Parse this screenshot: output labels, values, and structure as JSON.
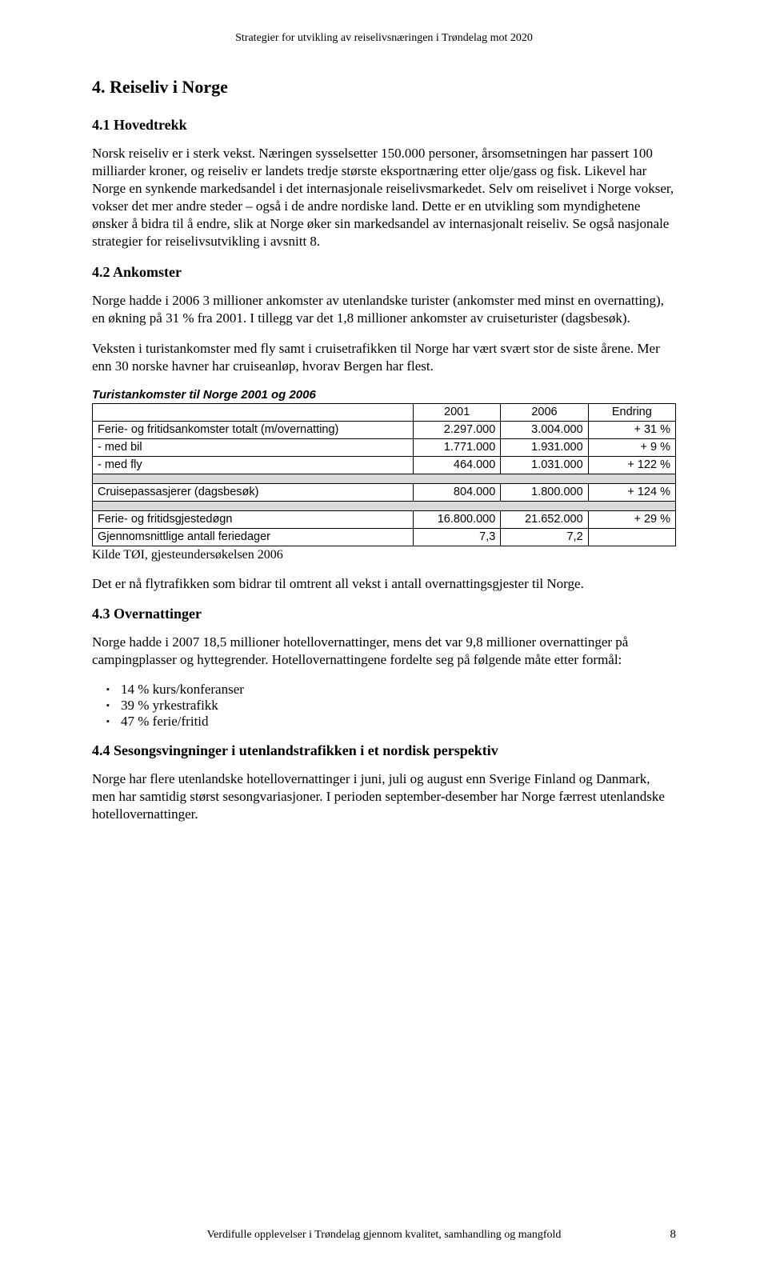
{
  "header": "Strategier for utvikling av reiselivsnæringen i Trøndelag mot 2020",
  "s4": {
    "title": "4. Reiseliv i Norge",
    "s41": {
      "title": "4.1 Hovedtrekk",
      "p1": "Norsk reiseliv er i sterk vekst. Næringen sysselsetter 150.000 personer, årsomsetningen har passert 100 milliarder kroner, og reiseliv er landets tredje største eksportnæring etter olje/gass og fisk. Likevel har Norge en synkende markedsandel i det internasjonale reiselivsmarkedet. Selv om reiselivet i Norge vokser, vokser det mer andre steder – også i de andre nordiske land. Dette er en utvikling som myndighetene ønsker å bidra til å endre, slik at Norge øker sin markedsandel av internasjonalt reiseliv. Se også nasjonale strategier for reiselivsutvikling i avsnitt 8."
    },
    "s42": {
      "title": "4.2 Ankomster",
      "p1": "Norge hadde i 2006 3 millioner ankomster av utenlandske turister (ankomster med minst en overnatting), en økning på 31 % fra 2001. I tillegg var det 1,8 millioner ankomster av cruiseturister (dagsbesøk).",
      "p2": "Veksten i turistankomster med fly samt i cruisetrafikken til Norge har vært svært stor de siste årene. Mer enn 30 norske havner har cruiseanløp, hvorav Bergen har flest.",
      "tableTitle": "Turistankomster til Norge 2001 og 2006",
      "th1": "2001",
      "th2": "2006",
      "th3": "Endring",
      "r1": {
        "label": "Ferie- og fritidsankomster totalt (m/overnatting)",
        "c1": "2.297.000",
        "c2": "3.004.000",
        "c3": "+  31 %"
      },
      "r2": {
        "label": "- med bil",
        "c1": "1.771.000",
        "c2": "1.931.000",
        "c3": "+    9 %"
      },
      "r3": {
        "label": "- med fly",
        "c1": "464.000",
        "c2": "1.031.000",
        "c3": "+ 122 %"
      },
      "r4": {
        "label": "Cruisepassasjerer (dagsbesøk)",
        "c1": "804.000",
        "c2": "1.800.000",
        "c3": "+ 124 %"
      },
      "r5": {
        "label": "Ferie- og fritidsgjestedøgn",
        "c1": "16.800.000",
        "c2": "21.652.000",
        "c3": "+  29 %"
      },
      "r6": {
        "label": "Gjennomsnittlige antall feriedager",
        "c1": "7,3",
        "c2": "7,2",
        "c3": ""
      },
      "source": "Kilde TØI, gjesteundersøkelsen 2006",
      "p3": "Det er nå flytrafikken som bidrar til omtrent all vekst i antall overnattingsgjester til Norge."
    },
    "s43": {
      "title": "4.3 Overnattinger",
      "p1": "Norge hadde i 2007 18,5 millioner hotellovernattinger, mens det var 9,8 millioner overnattinger på campingplasser og hyttegrender. Hotellovernattingene fordelte seg på følgende måte etter formål:",
      "li1": "14 % kurs/konferanser",
      "li2": "39 % yrkestrafikk",
      "li3": "47 % ferie/fritid"
    },
    "s44": {
      "title": "4.4 Sesongsvingninger i utenlandstrafikken i et nordisk perspektiv",
      "p1": "Norge har flere utenlandske hotellovernattinger i juni, juli og august enn Sverige Finland og Danmark, men har samtidig størst sesongvariasjoner. I perioden september-desember har Norge færrest utenlandske hotellovernattinger."
    }
  },
  "footer": "Verdifulle opplevelser i Trøndelag gjennom kvalitet, samhandling og mangfold",
  "pageNumber": "8"
}
